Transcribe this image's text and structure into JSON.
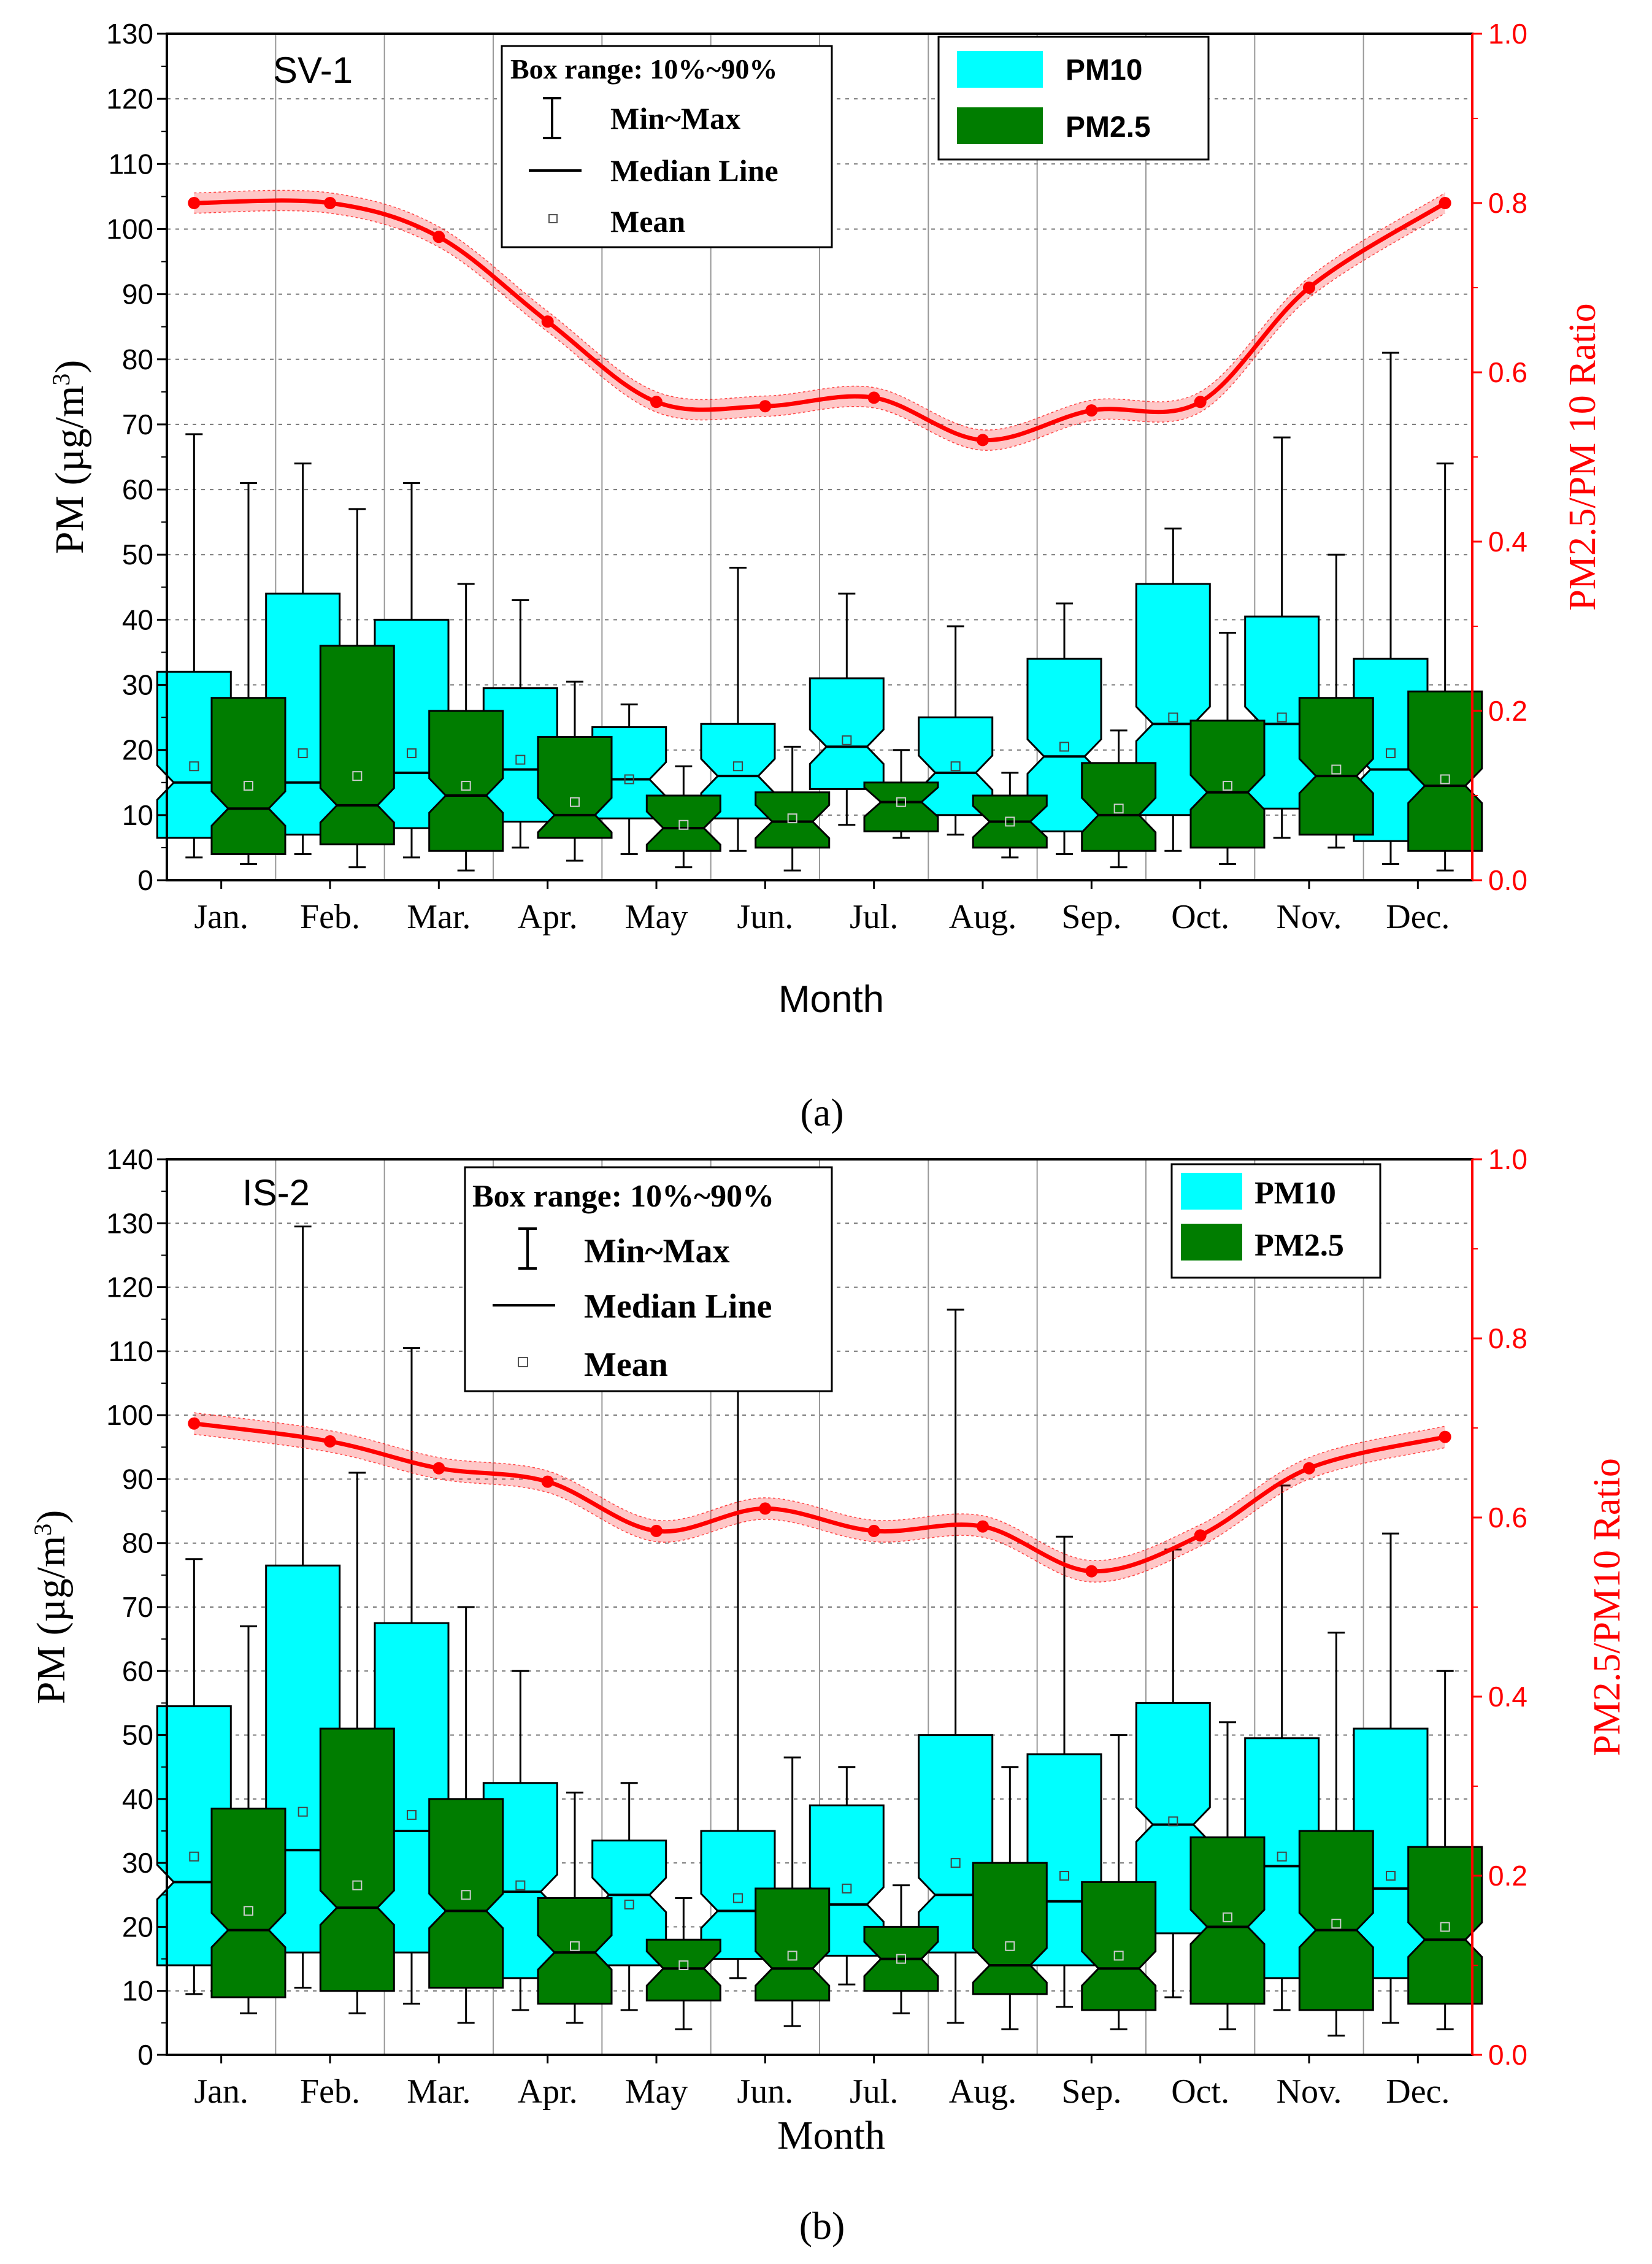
{
  "chart_data": [
    {
      "type": "box",
      "panel_label": "(a)",
      "site": "SV-1",
      "xlabel": "Month",
      "ylabel": "PM (µg/m³)",
      "y2label": "PM2.5/PM 10 Ratio",
      "ylim": [
        0,
        130
      ],
      "y2lim": [
        0,
        1.0
      ],
      "yticks": [
        "0",
        "10",
        "20",
        "30",
        "40",
        "50",
        "60",
        "70",
        "80",
        "90",
        "100",
        "110",
        "120",
        "130"
      ],
      "y2ticks": [
        "0.0",
        "0.2",
        "0.4",
        "0.6",
        "0.8",
        "1.0"
      ],
      "categories": [
        "Jan.",
        "Feb.",
        "Mar.",
        "Apr.",
        "May",
        "Jun.",
        "Jul.",
        "Aug.",
        "Sep.",
        "Oct.",
        "Nov.",
        "Dec."
      ],
      "legend_stats": {
        "title": "Box range: 10%~90%",
        "minmax": "Min~Max",
        "median": "Median Line",
        "mean": "Mean"
      },
      "legend_series": [
        {
          "name": "PM10",
          "color": "#00ffff"
        },
        {
          "name": "PM2.5",
          "color": "#007d00"
        }
      ],
      "series": [
        {
          "name": "PM10",
          "color": "#00ffff",
          "boxes": [
            {
              "min": 3.5,
              "p10": 6.5,
              "median": 15,
              "p90": 32,
              "max": 68.5,
              "mean": 17.5
            },
            {
              "min": 4,
              "p10": 7,
              "median": 15,
              "p90": 44,
              "max": 64,
              "mean": 19.5
            },
            {
              "min": 3.5,
              "p10": 8,
              "median": 16.5,
              "p90": 40,
              "max": 61,
              "mean": 19.5
            },
            {
              "min": 5,
              "p10": 9,
              "median": 17,
              "p90": 29.5,
              "max": 43,
              "mean": 18.5
            },
            {
              "min": 4,
              "p10": 9.5,
              "median": 15.5,
              "p90": 23.5,
              "max": 27,
              "mean": 15.5
            },
            {
              "min": 4.5,
              "p10": 9.5,
              "median": 16,
              "p90": 24,
              "max": 48,
              "mean": 17.5
            },
            {
              "min": 8.5,
              "p10": 14,
              "median": 20.5,
              "p90": 31,
              "max": 44,
              "mean": 21.5
            },
            {
              "min": 7,
              "p10": 10,
              "median": 16.5,
              "p90": 25,
              "max": 39,
              "mean": 17.5
            },
            {
              "min": 4,
              "p10": 7.5,
              "median": 19,
              "p90": 34,
              "max": 42.5,
              "mean": 20.5
            },
            {
              "min": 4.5,
              "p10": 10,
              "median": 24,
              "p90": 45.5,
              "max": 54,
              "mean": 25
            },
            {
              "min": 6.5,
              "p10": 11,
              "median": 24,
              "p90": 40.5,
              "max": 68,
              "mean": 25
            },
            {
              "min": 2.5,
              "p10": 6,
              "median": 17,
              "p90": 34,
              "max": 81,
              "mean": 19.5
            }
          ]
        },
        {
          "name": "PM2.5",
          "color": "#007d00",
          "boxes": [
            {
              "min": 2.5,
              "p10": 4,
              "median": 11,
              "p90": 28,
              "max": 61,
              "mean": 14.5
            },
            {
              "min": 2,
              "p10": 5.5,
              "median": 11.5,
              "p90": 36,
              "max": 57,
              "mean": 16
            },
            {
              "min": 1.5,
              "p10": 4.5,
              "median": 13,
              "p90": 26,
              "max": 45.5,
              "mean": 14.5
            },
            {
              "min": 3,
              "p10": 6.5,
              "median": 10,
              "p90": 22,
              "max": 30.5,
              "mean": 12
            },
            {
              "min": 2,
              "p10": 4.5,
              "median": 8,
              "p90": 13,
              "max": 17.5,
              "mean": 8.5
            },
            {
              "min": 1.5,
              "p10": 5,
              "median": 9,
              "p90": 13.5,
              "max": 20.5,
              "mean": 9.5
            },
            {
              "min": 6.5,
              "p10": 7.5,
              "median": 12,
              "p90": 15,
              "max": 20,
              "mean": 12
            },
            {
              "min": 3.5,
              "p10": 5,
              "median": 9,
              "p90": 13,
              "max": 16.5,
              "mean": 9
            },
            {
              "min": 2,
              "p10": 4.5,
              "median": 10,
              "p90": 18,
              "max": 23,
              "mean": 11
            },
            {
              "min": 2.5,
              "p10": 5,
              "median": 13.5,
              "p90": 24.5,
              "max": 38,
              "mean": 14.5
            },
            {
              "min": 5,
              "p10": 7,
              "median": 16,
              "p90": 28,
              "max": 50,
              "mean": 17
            },
            {
              "min": 1.5,
              "p10": 4.5,
              "median": 14.5,
              "p90": 29,
              "max": 64,
              "mean": 15.5
            }
          ]
        }
      ],
      "ratio_series": {
        "name": "PM2.5/PM 10 Ratio",
        "color": "#ff0000",
        "values": [
          0.8,
          0.8,
          0.76,
          0.66,
          0.565,
          0.56,
          0.57,
          0.52,
          0.555,
          0.565,
          0.7,
          0.8
        ]
      }
    },
    {
      "type": "box",
      "panel_label": "(b)",
      "site": "IS-2",
      "xlabel": "Month",
      "ylabel": "PM (µg/m³)",
      "y2label": "PM2.5/PM10 Ratio",
      "ylim": [
        0,
        140
      ],
      "y2lim": [
        0,
        1.0
      ],
      "yticks": [
        "0",
        "10",
        "20",
        "30",
        "40",
        "50",
        "60",
        "70",
        "80",
        "90",
        "100",
        "110",
        "120",
        "130",
        "140"
      ],
      "y2ticks": [
        "0.0",
        "0.2",
        "0.4",
        "0.6",
        "0.8",
        "1.0"
      ],
      "categories": [
        "Jan.",
        "Feb.",
        "Mar.",
        "Apr.",
        "May",
        "Jun.",
        "Jul.",
        "Aug.",
        "Sep.",
        "Oct.",
        "Nov.",
        "Dec."
      ],
      "legend_stats": {
        "title": "Box range: 10%~90%",
        "minmax": "Min~Max",
        "median": "Median Line",
        "mean": "Mean"
      },
      "legend_series": [
        {
          "name": "PM10",
          "color": "#00ffff"
        },
        {
          "name": "PM2.5",
          "color": "#007d00"
        }
      ],
      "series": [
        {
          "name": "PM10",
          "color": "#00ffff",
          "boxes": [
            {
              "min": 9.5,
              "p10": 14,
              "median": 27,
              "p90": 54.5,
              "max": 77.5,
              "mean": 31
            },
            {
              "min": 10.5,
              "p10": 16,
              "median": 32,
              "p90": 76.5,
              "max": 129.5,
              "mean": 38
            },
            {
              "min": 8,
              "p10": 16,
              "median": 35,
              "p90": 67.5,
              "max": 110.5,
              "mean": 37.5
            },
            {
              "min": 7,
              "p10": 12,
              "median": 25.5,
              "p90": 42.5,
              "max": 60,
              "mean": 26.5
            },
            {
              "min": 7,
              "p10": 14,
              "median": 25,
              "p90": 33.5,
              "max": 42.5,
              "mean": 23.5
            },
            {
              "min": 12,
              "p10": 15,
              "median": 22.5,
              "p90": 35,
              "max": 104,
              "mean": 24.5
            },
            {
              "min": 11,
              "p10": 15.5,
              "median": 23.5,
              "p90": 39,
              "max": 45,
              "mean": 26
            },
            {
              "min": 5,
              "p10": 16,
              "median": 25,
              "p90": 50,
              "max": 116.5,
              "mean": 30
            },
            {
              "min": 7.5,
              "p10": 14,
              "median": 24,
              "p90": 47,
              "max": 81,
              "mean": 28
            },
            {
              "min": 9,
              "p10": 19,
              "median": 36,
              "p90": 55,
              "max": 79,
              "mean": 36.5
            },
            {
              "min": 7,
              "p10": 12,
              "median": 29.5,
              "p90": 49.5,
              "max": 89,
              "mean": 31
            },
            {
              "min": 5,
              "p10": 12,
              "median": 26,
              "p90": 51,
              "max": 81.5,
              "mean": 28
            }
          ]
        },
        {
          "name": "PM2.5",
          "color": "#007d00",
          "boxes": [
            {
              "min": 6.5,
              "p10": 9,
              "median": 19.5,
              "p90": 38.5,
              "max": 67,
              "mean": 22.5
            },
            {
              "min": 6.5,
              "p10": 10,
              "median": 23,
              "p90": 51,
              "max": 91,
              "mean": 26.5
            },
            {
              "min": 5,
              "p10": 10.5,
              "median": 22.5,
              "p90": 40,
              "max": 70,
              "mean": 25
            },
            {
              "min": 5,
              "p10": 8,
              "median": 16,
              "p90": 24.5,
              "max": 41,
              "mean": 17
            },
            {
              "min": 4,
              "p10": 8.5,
              "median": 13.5,
              "p90": 18,
              "max": 24.5,
              "mean": 14
            },
            {
              "min": 4.5,
              "p10": 8.5,
              "median": 13.5,
              "p90": 26,
              "max": 46.5,
              "mean": 15.5
            },
            {
              "min": 6.5,
              "p10": 10,
              "median": 15,
              "p90": 20,
              "max": 26.5,
              "mean": 15
            },
            {
              "min": 4,
              "p10": 9.5,
              "median": 14,
              "p90": 30,
              "max": 45,
              "mean": 17
            },
            {
              "min": 4,
              "p10": 7,
              "median": 13.5,
              "p90": 27,
              "max": 50,
              "mean": 15.5
            },
            {
              "min": 4,
              "p10": 8,
              "median": 20,
              "p90": 34,
              "max": 52,
              "mean": 21.5
            },
            {
              "min": 3,
              "p10": 7,
              "median": 19.5,
              "p90": 35,
              "max": 66,
              "mean": 20.5
            },
            {
              "min": 4,
              "p10": 8,
              "median": 18,
              "p90": 32.5,
              "max": 60,
              "mean": 20
            }
          ]
        }
      ],
      "ratio_series": {
        "name": "PM2.5/PM10 Ratio",
        "color": "#ff0000",
        "values": [
          0.705,
          0.685,
          0.655,
          0.64,
          0.585,
          0.61,
          0.585,
          0.59,
          0.54,
          0.58,
          0.655,
          0.69
        ]
      }
    }
  ]
}
